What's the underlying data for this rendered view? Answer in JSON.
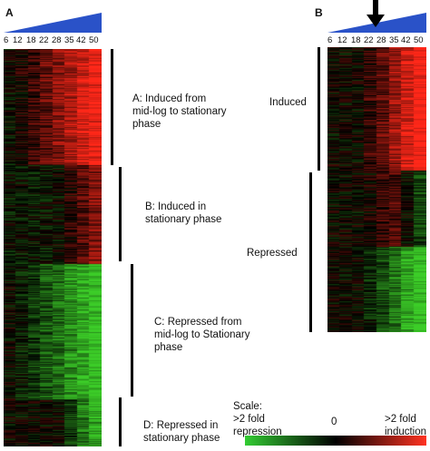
{
  "panels": [
    {
      "label": "A",
      "timepoints": [
        "6",
        "12",
        "18",
        "22",
        "28",
        "35",
        "42",
        "50"
      ],
      "annotations": [
        "A: Induced from\nmid-log to stationary\nphase",
        "B: Induced in\nstationary phase",
        "C: Repressed from\nmid-log to Stationary\nphase",
        "D: Repressed in\nstationary phase"
      ]
    },
    {
      "label": "B",
      "timepoints": [
        "6",
        "12",
        "18",
        "22",
        "28",
        "35",
        "42",
        "50"
      ],
      "annotations": [
        "Induced",
        "Repressed"
      ],
      "arrow_marker": "arrow-down-icon"
    }
  ],
  "scale": {
    "title": "Scale:",
    "left_label": ">2 fold\nrepression",
    "center_label": "0",
    "right_label": ">2 fold\ninduction",
    "colors": [
      "#33cc33",
      "#000000",
      "#ff3322"
    ]
  },
  "colors": {
    "ramp": "#2a52c8",
    "induced": "#ff2a1a",
    "repressed": "#3fcc2a",
    "neutral": "#000000"
  }
}
